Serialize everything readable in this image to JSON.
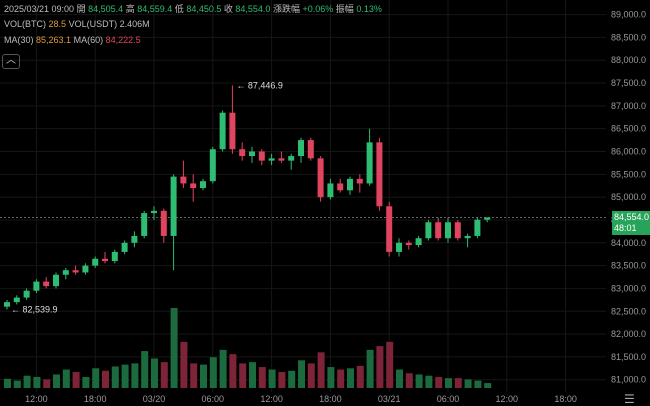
{
  "header": {
    "time": "2025/03/21 09:00",
    "open_label": "開",
    "open": "84,505.4",
    "high_label": "高",
    "high": "84,559.4",
    "low_label": "低",
    "low": "84,450.5",
    "close_label": "收",
    "close": "84,554.0",
    "change_label": "漲跌幅",
    "change": "+0.06%",
    "amp_label": "振幅",
    "amp": "0.13%"
  },
  "vol": {
    "label_btc": "VOL(BTC)",
    "value_btc": "28.5",
    "label_usdt": "VOL(USDT)",
    "value_usdt": "2.406M"
  },
  "ma": {
    "label30": "MA(30)",
    "value30": "85,263.1",
    "label60": "MA(60)",
    "value60": "84,222.5"
  },
  "price_tag": {
    "price": "84,554.0",
    "countdown": "48:01"
  },
  "colors": {
    "up": "#2fbd74",
    "down": "#e0445f",
    "vol_up": "#1c6b3f",
    "vol_down": "#7d2438",
    "bg": "#000000"
  },
  "icons": {
    "collapse": "chevron-up-icon",
    "menu": "menu-icon"
  },
  "collapse_glyph": "︿",
  "chart_data": {
    "type": "candlestick",
    "interval": "1H",
    "y_range": [
      80950,
      89100
    ],
    "y_ticks": [
      81000,
      81500,
      82000,
      82500,
      83000,
      83500,
      84000,
      84500,
      85000,
      85500,
      86000,
      86500,
      87000,
      87500,
      88000,
      88500,
      89000
    ],
    "y_tick_labels": [
      "81,000.0",
      "81,500.0",
      "82,000.0",
      "82,500.0",
      "83,000.0",
      "83,500.0",
      "84,000.0",
      "84,500.0",
      "85,000.0",
      "85,500.0",
      "86,000.0",
      "86,500.0",
      "87,000.0",
      "87,500.0",
      "88,000.0",
      "88,500.0",
      "89,000.0"
    ],
    "x_ticks": [
      {
        "index": 3,
        "label": "12:00"
      },
      {
        "index": 9,
        "label": "18:00"
      },
      {
        "index": 15,
        "label": "03/20"
      },
      {
        "index": 21,
        "label": "06:00"
      },
      {
        "index": 27,
        "label": "12:00"
      },
      {
        "index": 33,
        "label": "18:00"
      },
      {
        "index": 39,
        "label": "03/21"
      },
      {
        "index": 45,
        "label": "06:00"
      },
      {
        "index": 51,
        "label": "12:00"
      },
      {
        "index": 57,
        "label": "18:00"
      }
    ],
    "candles": [
      [
        82600,
        82750,
        82539.9,
        82700
      ],
      [
        82700,
        82850,
        82650,
        82800
      ],
      [
        82800,
        83000,
        82750,
        82950
      ],
      [
        82950,
        83200,
        82900,
        83150
      ],
      [
        83150,
        83250,
        83000,
        83050
      ],
      [
        83050,
        83350,
        83000,
        83300
      ],
      [
        83300,
        83450,
        83200,
        83400
      ],
      [
        83400,
        83500,
        83300,
        83350
      ],
      [
        83350,
        83550,
        83300,
        83500
      ],
      [
        83500,
        83700,
        83450,
        83650
      ],
      [
        83650,
        83800,
        83550,
        83600
      ],
      [
        83600,
        83850,
        83550,
        83800
      ],
      [
        83800,
        84050,
        83750,
        84000
      ],
      [
        84000,
        84250,
        83900,
        84150
      ],
      [
        84150,
        84700,
        84100,
        84650
      ],
      [
        84650,
        84800,
        84500,
        84700
      ],
      [
        84700,
        84750,
        84000,
        84150
      ],
      [
        84150,
        85500,
        83400,
        85450
      ],
      [
        85450,
        85800,
        85200,
        85300
      ],
      [
        85300,
        85500,
        84900,
        85200
      ],
      [
        85200,
        85400,
        85150,
        85350
      ],
      [
        85350,
        86100,
        85300,
        86050
      ],
      [
        86050,
        86900,
        86000,
        86850
      ],
      [
        86850,
        87446.9,
        85950,
        86050
      ],
      [
        86050,
        86200,
        85800,
        85900
      ],
      [
        85900,
        86100,
        85750,
        86000
      ],
      [
        86000,
        86050,
        85700,
        85800
      ],
      [
        85800,
        85950,
        85700,
        85850
      ],
      [
        85850,
        86000,
        85750,
        85800
      ],
      [
        85800,
        85950,
        85600,
        85900
      ],
      [
        85900,
        86300,
        85750,
        86250
      ],
      [
        86250,
        86300,
        85800,
        85850
      ],
      [
        85850,
        85900,
        84900,
        85000
      ],
      [
        85000,
        85400,
        84950,
        85300
      ],
      [
        85300,
        85400,
        85100,
        85150
      ],
      [
        85150,
        85450,
        85050,
        85400
      ],
      [
        85400,
        85500,
        85100,
        85300
      ],
      [
        85300,
        86500,
        85250,
        86200
      ],
      [
        86200,
        86300,
        84700,
        84800
      ],
      [
        84800,
        84900,
        83700,
        83800
      ],
      [
        83800,
        84100,
        83700,
        84000
      ],
      [
        84000,
        84050,
        83850,
        83950
      ],
      [
        83950,
        84150,
        83900,
        84100
      ],
      [
        84100,
        84500,
        84050,
        84450
      ],
      [
        84450,
        84550,
        84050,
        84100
      ],
      [
        84100,
        84550,
        84000,
        84450
      ],
      [
        84450,
        84500,
        84050,
        84100
      ],
      [
        84100,
        84200,
        83900,
        84150
      ],
      [
        84150,
        84550,
        84100,
        84505
      ],
      [
        84505.4,
        84559.4,
        84450.5,
        84554
      ]
    ],
    "volumes": [
      15,
      12,
      20,
      18,
      14,
      22,
      30,
      26,
      18,
      32,
      28,
      35,
      38,
      40,
      60,
      48,
      42,
      130,
      75,
      40,
      38,
      50,
      62,
      55,
      40,
      42,
      34,
      30,
      26,
      28,
      45,
      40,
      58,
      34,
      30,
      32,
      36,
      62,
      68,
      75,
      30,
      24,
      22,
      20,
      18,
      16,
      16,
      14,
      12,
      8
    ],
    "annotations": [
      {
        "index": 23,
        "value": 87446.9,
        "text": "87,446.9"
      },
      {
        "index": 0,
        "value": 82539.9,
        "text": "82,539.9"
      }
    ]
  }
}
